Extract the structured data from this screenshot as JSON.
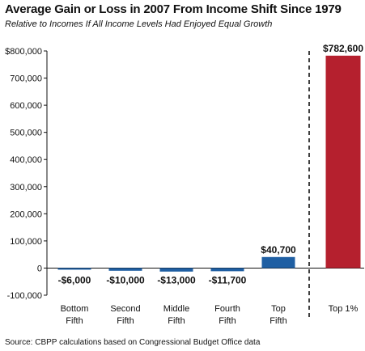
{
  "title": "Average Gain or Loss in 2007 From Income Shift Since 1979",
  "subtitle": "Relative to Incomes If All Income Levels Had Enjoyed Equal Growth",
  "source": "Source: CBPP calculations based on Congressional Budget Office data",
  "chart_data": {
    "type": "bar",
    "categories": [
      [
        "Bottom",
        "Fifth"
      ],
      [
        "Second",
        "Fifth"
      ],
      [
        "Middle",
        "Fifth"
      ],
      [
        "Fourth",
        "Fifth"
      ],
      [
        "Top",
        "Fifth"
      ],
      [
        "Top 1%"
      ]
    ],
    "values": [
      -6000,
      -10000,
      -13000,
      -11700,
      40700,
      782600
    ],
    "data_labels": [
      "-$6,000",
      "-$10,000",
      "-$13,000",
      "-$11,700",
      "$40,700",
      "$782,600"
    ],
    "colors": [
      "#1f5fa3",
      "#1f5fa3",
      "#1f5fa3",
      "#1f5fa3",
      "#1f5fa3",
      "#b5202e"
    ],
    "ylim": [
      -100000,
      800000
    ],
    "yticks": [
      -100000,
      0,
      100000,
      200000,
      300000,
      400000,
      500000,
      600000,
      700000,
      800000
    ],
    "ytick_labels": [
      "-100,000",
      "0",
      "100,000",
      "200,000",
      "300,000",
      "400,000",
      "500,000",
      "600,000",
      "700,000",
      "$800,000"
    ],
    "separator": "dashed line between Top Fifth and Top 1%",
    "grid": false
  }
}
